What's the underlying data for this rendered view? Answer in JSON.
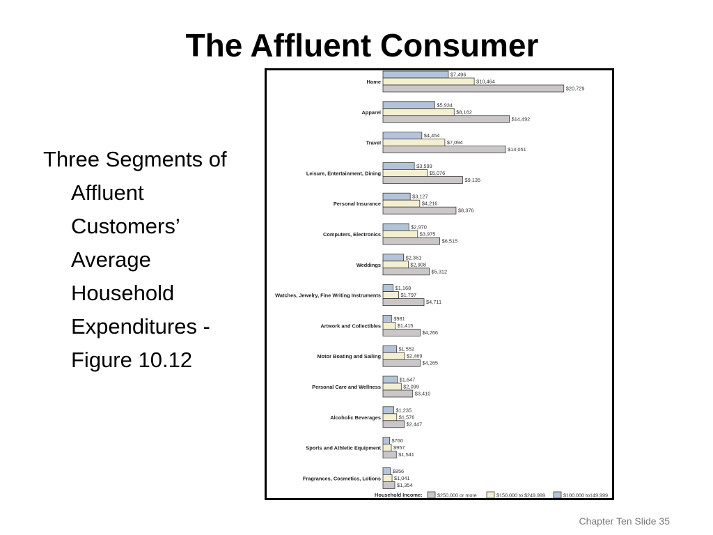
{
  "slide": {
    "title": "The Affluent Consumer",
    "body": "Three Segments of Affluent Customers’ Average Household Expenditures - Figure 10.12",
    "footer": "Chapter Ten Slide 35"
  },
  "chart_data": {
    "type": "bar",
    "orientation": "horizontal",
    "categories": [
      "Home",
      "Apparel",
      "Travel",
      "Leisure, Entertainment, Dining",
      "Personal Insurance",
      "Computers, Electronics",
      "Weddings",
      "Watches, Jewelry, Fine Writing Instruments",
      "Artwork and Collectibles",
      "Motor Boating and Sailing",
      "Personal Care and Wellness",
      "Alcoholic Beverages",
      "Sports and Athletic Equipment",
      "Fragrances, Cosmetics, Lotions"
    ],
    "series": [
      {
        "name": "$100,000 to149,999",
        "color": "#b4c4d8",
        "values": [
          7496,
          5934,
          4454,
          3599,
          3127,
          2970,
          2361,
          1168,
          981,
          1552,
          1647,
          1235,
          760,
          856
        ],
        "labels": [
          "$7,496",
          "$5,934",
          "$4,454",
          "$3,599",
          "$3,127",
          "$2,970",
          "$2,361",
          "$1,168",
          "$981",
          "$1,552",
          "$1,647",
          "$1,235",
          "$760",
          "$856"
        ]
      },
      {
        "name": "$150,000 to $249,999",
        "color": "#f4f0cf",
        "values": [
          10464,
          8162,
          7094,
          5076,
          4216,
          3975,
          2908,
          1797,
          1415,
          2469,
          2099,
          1576,
          957,
          1041
        ],
        "labels": [
          "$10,464",
          "$8,162",
          "$7,094",
          "$5,076",
          "$4,216",
          "$3,975",
          "$2,908",
          "$1,797",
          "$1,415",
          "$2,469",
          "$2,099",
          "$1,576",
          "$957",
          "$1,041"
        ]
      },
      {
        "name": "$250,000 or more",
        "color": "#cbc6c8",
        "values": [
          20729,
          14492,
          14051,
          9135,
          8376,
          6515,
          5312,
          4711,
          4266,
          4265,
          3410,
          2447,
          1541,
          1354
        ],
        "labels": [
          "$20,729",
          "$14,492",
          "$14,051",
          "$9,135",
          "$8,376",
          "$6,515",
          "$5,312",
          "$4,711",
          "$4,266",
          "$4,265",
          "$3,410",
          "$2,447",
          "$1,541",
          "$1,354"
        ]
      }
    ],
    "legend": {
      "label": "Household Income:",
      "order": [
        "$250,000 or more",
        "$150,000 to $249,999",
        "$100,000 to149,999"
      ],
      "placement": "bottom"
    },
    "grid": false
  }
}
